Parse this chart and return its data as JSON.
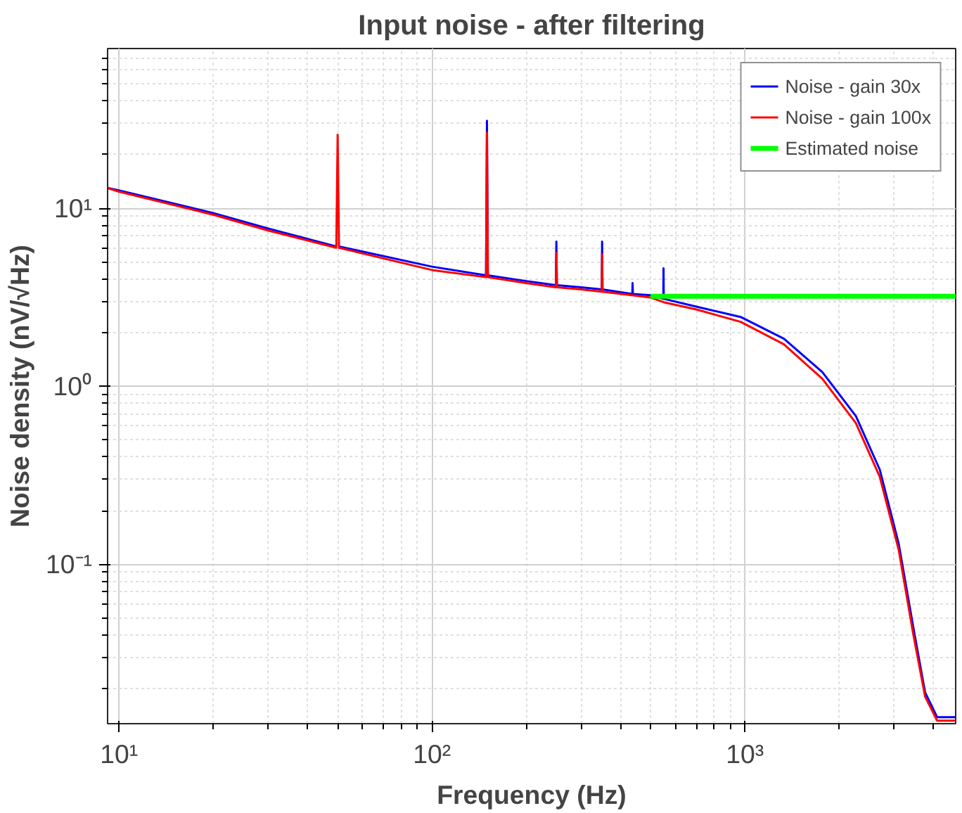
{
  "chart_data": {
    "type": "line",
    "title": "Input noise - after filtering",
    "xlabel": "Frequency (Hz)",
    "ylabel": "Noise density (nV/√Hz)",
    "log": "xy",
    "grid": true,
    "legend": "top right",
    "line_style": "solid",
    "marker": "none",
    "xlim": [
      9.2,
      4720
    ],
    "ylim": [
      0.0127,
      79
    ],
    "xticks": [
      {
        "value": 10,
        "label": "10¹"
      },
      {
        "value": 100,
        "label": "10²"
      },
      {
        "value": 1000,
        "label": "10³"
      }
    ],
    "yticks": [
      {
        "value": 0.1,
        "label": "10⁻¹"
      },
      {
        "value": 1,
        "label": "10⁰"
      },
      {
        "value": 10,
        "label": "10¹"
      }
    ],
    "series": [
      {
        "name": "Noise - gain 30x",
        "color": "#0000ff",
        "x": [
          9.2,
          10,
          20,
          30,
          49.5,
          50,
          50.5,
          100,
          149,
          150,
          151,
          200,
          249,
          250,
          251,
          300,
          349,
          350,
          351,
          437,
          438,
          439,
          500,
          549,
          550,
          551,
          700,
          970,
          1334,
          1770,
          2265,
          2700,
          3105,
          3450,
          3770,
          4120,
          4720
        ],
        "values": [
          13,
          12.6,
          9.4,
          7.7,
          6.1,
          null,
          6.1,
          4.7,
          4.2,
          31,
          4.2,
          3.9,
          3.7,
          6.5,
          3.7,
          3.6,
          3.5,
          6.5,
          3.5,
          3.3,
          3.8,
          3.3,
          3.25,
          3.1,
          4.6,
          3.1,
          2.8,
          2.45,
          1.85,
          1.2,
          0.68,
          0.34,
          0.13,
          0.045,
          0.019,
          0.0138,
          0.0138
        ]
      },
      {
        "name": "Noise - gain 100x",
        "color": "#ff0000",
        "x": [
          9.2,
          10,
          20,
          30,
          49.5,
          50,
          50.5,
          100,
          149,
          150,
          151,
          200,
          249,
          250,
          251,
          300,
          349,
          350,
          351,
          500,
          553,
          700,
          970,
          1334,
          1770,
          2265,
          2700,
          3105,
          3450,
          3770,
          4120,
          4720
        ],
        "values": [
          13,
          12.4,
          9.2,
          7.5,
          6.0,
          25.9,
          6.0,
          4.5,
          4.1,
          26.6,
          4.1,
          3.8,
          3.6,
          5.6,
          3.6,
          3.5,
          3.4,
          5.5,
          3.4,
          3.15,
          2.96,
          2.7,
          2.3,
          1.72,
          1.1,
          0.62,
          0.31,
          0.12,
          0.041,
          0.018,
          0.0132,
          0.0132
        ]
      },
      {
        "name": "Estimated noise",
        "color": "#00ff00",
        "x": [
          500,
          4720
        ],
        "values": [
          3.2,
          3.2
        ]
      }
    ]
  }
}
